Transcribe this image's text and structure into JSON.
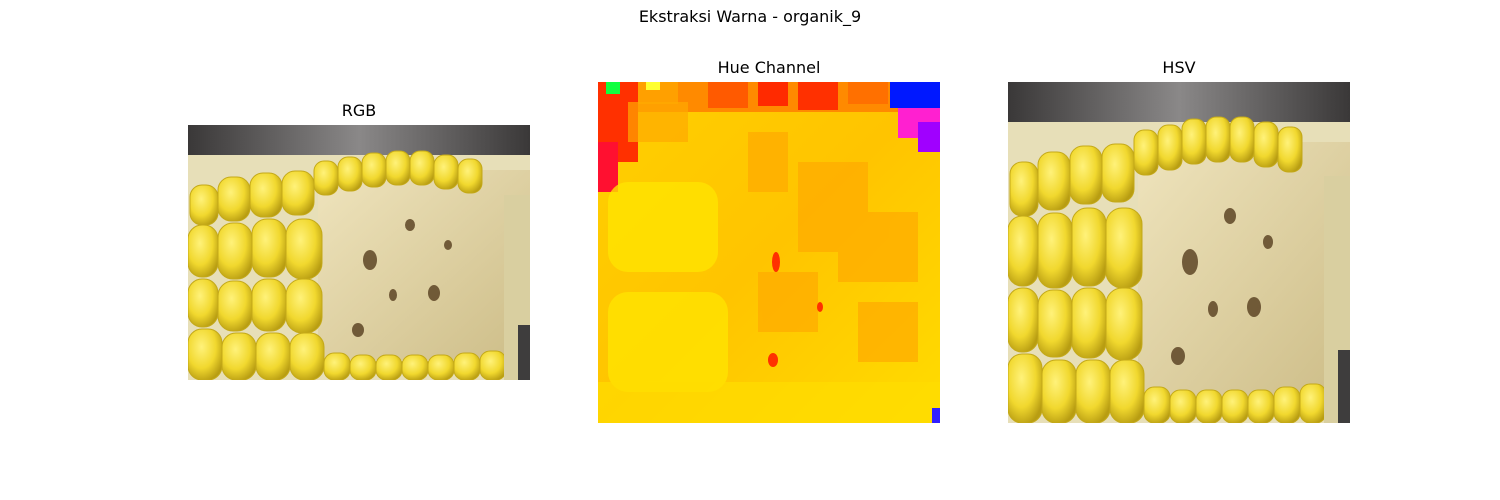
{
  "figure": {
    "title": "Ekstraksi Warna - organik_9"
  },
  "panels": [
    {
      "title": "RGB"
    },
    {
      "title": "Hue Channel"
    },
    {
      "title": "HSV"
    }
  ],
  "colors": {
    "kernel_yellow": "#f3de3a",
    "kernel_shadow": "#c9b11c",
    "cob_cream": "#e8dcae",
    "cob_pit": "#6b5330",
    "background_dark": "#4a4848",
    "hue_yellow": "#ffe000",
    "hue_orange": "#ffb000",
    "hue_red": "#ff2000",
    "hue_blue": "#0020ff",
    "hue_magenta": "#ff00ff"
  }
}
